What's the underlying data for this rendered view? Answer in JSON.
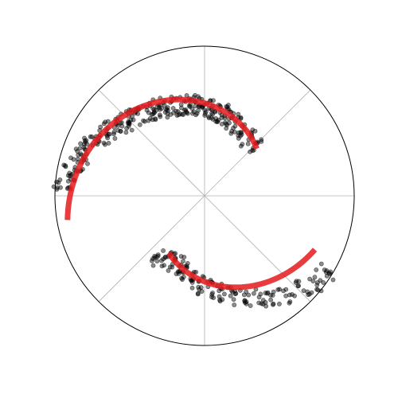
{
  "chart_data": {
    "type": "scatter",
    "coordinate_system": "polar",
    "title": "",
    "grid": true,
    "spokes_every_degrees": 45,
    "r_max": 1.0,
    "colors": {
      "points": "#000000",
      "fit": "#e41a1c",
      "grid": "#b0b0b0",
      "frame": "#000000"
    },
    "series": [
      {
        "kind": "points",
        "arc_samples": [
          {
            "theta": 176,
            "r": 0.94
          },
          {
            "theta": 172,
            "r": 0.92
          },
          {
            "theta": 168,
            "r": 0.9
          },
          {
            "theta": 164,
            "r": 0.88
          },
          {
            "theta": 160,
            "r": 0.85
          },
          {
            "theta": 156,
            "r": 0.83
          },
          {
            "theta": 152,
            "r": 0.8
          },
          {
            "theta": 148,
            "r": 0.78
          },
          {
            "theta": 144,
            "r": 0.76
          },
          {
            "theta": 140,
            "r": 0.74
          },
          {
            "theta": 136,
            "r": 0.72
          },
          {
            "theta": 132,
            "r": 0.7
          },
          {
            "theta": 128,
            "r": 0.68
          },
          {
            "theta": 124,
            "r": 0.67
          },
          {
            "theta": 120,
            "r": 0.66
          },
          {
            "theta": 116,
            "r": 0.65
          },
          {
            "theta": 112,
            "r": 0.64
          },
          {
            "theta": 108,
            "r": 0.63
          },
          {
            "theta": 104,
            "r": 0.62
          },
          {
            "theta": 100,
            "r": 0.62
          },
          {
            "theta": 96,
            "r": 0.61
          },
          {
            "theta": 92,
            "r": 0.6
          },
          {
            "theta": 88,
            "r": 0.59
          },
          {
            "theta": 84,
            "r": 0.58
          },
          {
            "theta": 80,
            "r": 0.57
          },
          {
            "theta": 76,
            "r": 0.56
          },
          {
            "theta": 72,
            "r": 0.54
          },
          {
            "theta": 66,
            "r": 0.52
          },
          {
            "theta": 60,
            "r": 0.5
          },
          {
            "theta": 52,
            "r": 0.48
          },
          {
            "theta": 44,
            "r": 0.47
          },
          {
            "theta": 232,
            "r": 0.52
          },
          {
            "theta": 238,
            "r": 0.5
          },
          {
            "theta": 244,
            "r": 0.49
          },
          {
            "theta": 250,
            "r": 0.5
          },
          {
            "theta": 256,
            "r": 0.53
          },
          {
            "theta": 262,
            "r": 0.56
          },
          {
            "theta": 268,
            "r": 0.6
          },
          {
            "theta": 274,
            "r": 0.63
          },
          {
            "theta": 280,
            "r": 0.67
          },
          {
            "theta": 286,
            "r": 0.7
          },
          {
            "theta": 292,
            "r": 0.74
          },
          {
            "theta": 298,
            "r": 0.78
          },
          {
            "theta": 304,
            "r": 0.82
          },
          {
            "theta": 310,
            "r": 0.86
          },
          {
            "theta": 316,
            "r": 0.9
          },
          {
            "theta": 322,
            "r": 0.94
          },
          {
            "theta": 328,
            "r": 0.96
          }
        ]
      },
      {
        "kind": "fit_curve",
        "curves": [
          {
            "theta_start": 190,
            "theta_end": 42,
            "r_start": 0.93,
            "r_end": 0.47
          },
          {
            "theta_start": 238,
            "theta_end": 334,
            "r_start": 0.45,
            "r_end": 0.82
          }
        ]
      }
    ]
  }
}
